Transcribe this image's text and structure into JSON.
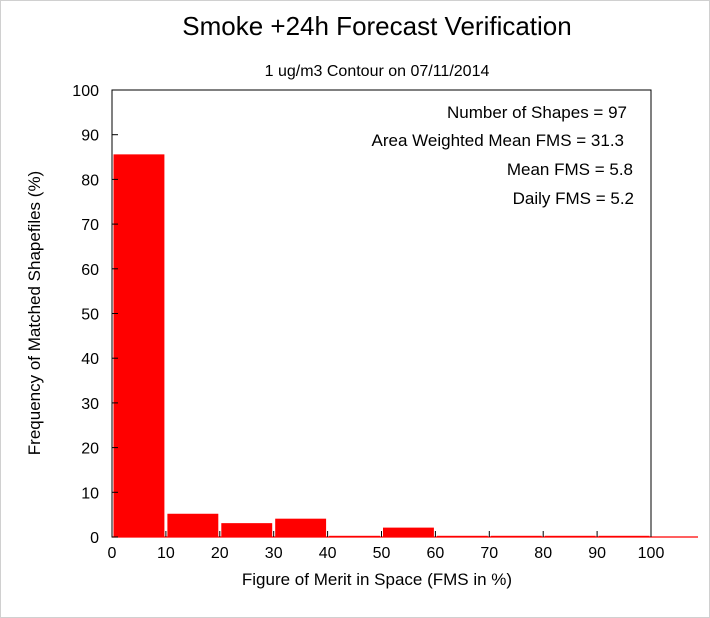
{
  "chart_data": {
    "type": "bar",
    "title": "Smoke +24h Forecast Verification",
    "subtitle": "1 ug/m3 Contour on 07/11/2014",
    "xlabel": "Figure of Merit in Space (FMS in %)",
    "ylabel": "Frequency of Matched Shapefiles (%)",
    "xlim": [
      0,
      100
    ],
    "ylim": [
      0,
      100
    ],
    "x_ticks": [
      "0",
      "10",
      "20",
      "30",
      "40",
      "50",
      "60",
      "70",
      "80",
      "90",
      "100"
    ],
    "y_ticks": [
      "0",
      "10",
      "20",
      "30",
      "40",
      "50",
      "60",
      "70",
      "80",
      "90",
      "100"
    ],
    "bins": [
      {
        "start": 0,
        "end": 10,
        "value": 85.6
      },
      {
        "start": 10,
        "end": 20,
        "value": 5.2
      },
      {
        "start": 20,
        "end": 30,
        "value": 3.1
      },
      {
        "start": 30,
        "end": 40,
        "value": 4.1
      },
      {
        "start": 40,
        "end": 50,
        "value": 0
      },
      {
        "start": 50,
        "end": 60,
        "value": 2.1
      },
      {
        "start": 60,
        "end": 70,
        "value": 0
      },
      {
        "start": 70,
        "end": 80,
        "value": 0
      },
      {
        "start": 80,
        "end": 90,
        "value": 0
      },
      {
        "start": 90,
        "end": 100,
        "value": 0
      }
    ],
    "bar_color": "#ff0000",
    "grid": false,
    "annotations": [
      "Number of Shapes = 97",
      "Area Weighted Mean FMS = 31.3",
      "Mean FMS = 5.8",
      "Daily FMS = 5.2"
    ]
  }
}
